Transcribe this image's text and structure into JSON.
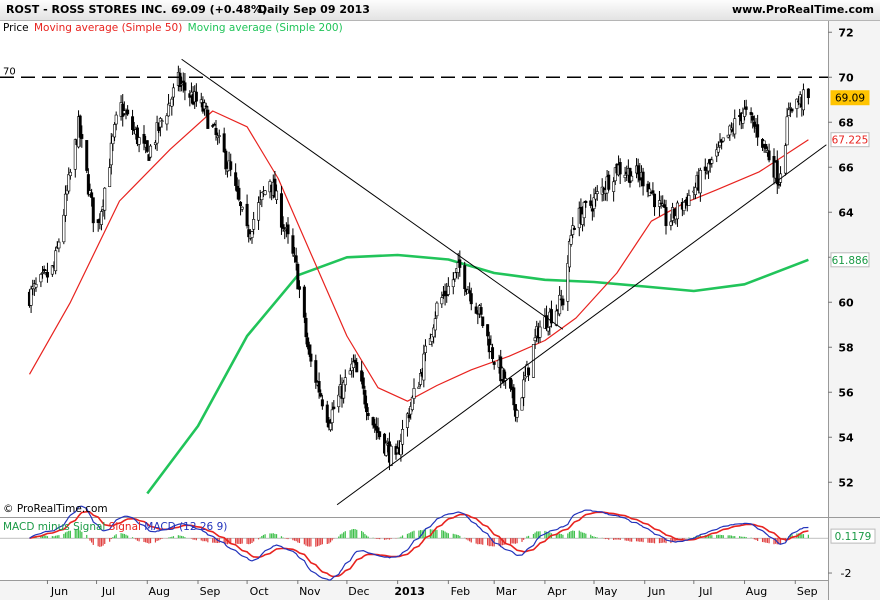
{
  "header": {
    "symbol_title": "ROST - ROSS STORES INC.",
    "last_change": "69.09 (+0.48%)",
    "period_date": "Daily  Sep 09 2013",
    "site": "www.ProRealTime.com"
  },
  "legend": {
    "price": "Price",
    "ma50": "Moving average (Simple 50)",
    "ma200": "Moving average (Simple 200)"
  },
  "macd_legend": {
    "hist": "MACD minus Signal",
    "signal": "Signal",
    "macd": "MACD (12 26 9)"
  },
  "copyright": "© ProRealTime.com",
  "colors": {
    "ma50": "#e8231f",
    "ma200": "#21c45a",
    "macd_line": "#2233bb",
    "signal_line": "#e8231f",
    "hist_pos": "#3dbf4a",
    "hist_neg": "#e04040",
    "badge_price": "#ffc400",
    "candle": "#000000"
  },
  "chart_data": [
    {
      "type": "candlestick",
      "title": "ROST - ROSS STORES INC.",
      "ylim": [
        50.5,
        72.5
      ],
      "yticks": [
        "52",
        "54",
        "56",
        "58",
        "60",
        "62",
        "64",
        "66",
        "68",
        "70",
        "72"
      ],
      "x_labels": [
        "Jun",
        "Jul",
        "Aug",
        "Sep",
        "Oct",
        "Nov",
        "Dec",
        "2013",
        "Feb",
        "Mar",
        "Apr",
        "May",
        "Jun",
        "Jul",
        "Aug",
        "Sep"
      ],
      "horizontal_line": {
        "label": "70",
        "value": 70
      },
      "last_price": "69.09",
      "ma50_last": "67.225",
      "ma200_last": "61.886",
      "close_path": [
        {
          "date": "2012-05-21",
          "close": 60.3
        },
        {
          "date": "2012-06-05",
          "close": 61.5
        },
        {
          "date": "2012-06-20",
          "close": 67.8
        },
        {
          "date": "2012-07-01",
          "close": 63.0
        },
        {
          "date": "2012-07-15",
          "close": 68.8
        },
        {
          "date": "2012-08-01",
          "close": 66.5
        },
        {
          "date": "2012-08-20",
          "close": 69.8
        },
        {
          "date": "2012-09-05",
          "close": 68.5
        },
        {
          "date": "2012-09-20",
          "close": 66.0
        },
        {
          "date": "2012-10-01",
          "close": 63.0
        },
        {
          "date": "2012-10-15",
          "close": 65.5
        },
        {
          "date": "2012-10-31",
          "close": 61.5
        },
        {
          "date": "2012-11-08",
          "close": 57.5
        },
        {
          "date": "2012-11-20",
          "close": 54.8
        },
        {
          "date": "2012-12-05",
          "close": 57.2
        },
        {
          "date": "2012-12-18",
          "close": 54.5
        },
        {
          "date": "2012-12-31",
          "close": 52.8
        },
        {
          "date": "2013-01-03",
          "close": 54.0
        },
        {
          "date": "2013-01-15",
          "close": 56.8
        },
        {
          "date": "2013-01-25",
          "close": 59.8
        },
        {
          "date": "2013-02-08",
          "close": 61.5
        },
        {
          "date": "2013-02-20",
          "close": 59.5
        },
        {
          "date": "2013-03-01",
          "close": 57.5
        },
        {
          "date": "2013-03-15",
          "close": 55.2
        },
        {
          "date": "2013-03-28",
          "close": 58.8
        },
        {
          "date": "2013-04-12",
          "close": 60.1
        },
        {
          "date": "2013-04-18",
          "close": 63.5
        },
        {
          "date": "2013-05-01",
          "close": 64.5
        },
        {
          "date": "2013-05-15",
          "close": 66.0
        },
        {
          "date": "2013-06-01",
          "close": 65.5
        },
        {
          "date": "2013-06-15",
          "close": 63.5
        },
        {
          "date": "2013-07-01",
          "close": 65.0
        },
        {
          "date": "2013-07-15",
          "close": 66.5
        },
        {
          "date": "2013-07-31",
          "close": 68.5
        },
        {
          "date": "2013-08-10",
          "close": 67.5
        },
        {
          "date": "2013-08-22",
          "close": 65.5
        },
        {
          "date": "2013-08-29",
          "close": 68.8
        },
        {
          "date": "2013-09-09",
          "close": 69.09
        }
      ],
      "ma50_path": [
        {
          "date": "2012-05-21",
          "ma": 56.8
        },
        {
          "date": "2012-06-15",
          "ma": 60.0
        },
        {
          "date": "2012-07-15",
          "ma": 64.5
        },
        {
          "date": "2012-08-15",
          "ma": 66.8
        },
        {
          "date": "2012-09-10",
          "ma": 68.5
        },
        {
          "date": "2012-10-01",
          "ma": 67.8
        },
        {
          "date": "2012-10-20",
          "ma": 65.5
        },
        {
          "date": "2012-11-10",
          "ma": 62.0
        },
        {
          "date": "2012-12-01",
          "ma": 58.5
        },
        {
          "date": "2012-12-20",
          "ma": 56.2
        },
        {
          "date": "2013-01-07",
          "ma": 55.6
        },
        {
          "date": "2013-01-25",
          "ma": 56.3
        },
        {
          "date": "2013-02-15",
          "ma": 57.0
        },
        {
          "date": "2013-03-10",
          "ma": 57.6
        },
        {
          "date": "2013-04-01",
          "ma": 58.3
        },
        {
          "date": "2013-04-20",
          "ma": 59.3
        },
        {
          "date": "2013-05-15",
          "ma": 61.3
        },
        {
          "date": "2013-06-05",
          "ma": 63.6
        },
        {
          "date": "2013-06-25",
          "ma": 64.4
        },
        {
          "date": "2013-07-15",
          "ma": 65.0
        },
        {
          "date": "2013-08-10",
          "ma": 65.8
        },
        {
          "date": "2013-09-09",
          "ma": 67.225
        }
      ],
      "ma200_path": [
        {
          "date": "2012-08-01",
          "ma": 51.5
        },
        {
          "date": "2012-09-01",
          "ma": 54.5
        },
        {
          "date": "2012-10-01",
          "ma": 58.5
        },
        {
          "date": "2012-11-01",
          "ma": 61.2
        },
        {
          "date": "2012-12-01",
          "ma": 62.0
        },
        {
          "date": "2013-01-01",
          "ma": 62.1
        },
        {
          "date": "2013-02-01",
          "ma": 61.9
        },
        {
          "date": "2013-03-01",
          "ma": 61.3
        },
        {
          "date": "2013-04-01",
          "ma": 61.0
        },
        {
          "date": "2013-05-01",
          "ma": 60.9
        },
        {
          "date": "2013-06-01",
          "ma": 60.7
        },
        {
          "date": "2013-07-01",
          "ma": 60.5
        },
        {
          "date": "2013-08-01",
          "ma": 60.8
        },
        {
          "date": "2013-09-09",
          "ma": 61.886
        }
      ],
      "trendlines": [
        {
          "from": {
            "date": "2012-08-22",
            "price": 70.8
          },
          "to": {
            "date": "2013-04-12",
            "price": 58.8
          }
        },
        {
          "from": {
            "date": "2012-11-25",
            "price": 51.0
          },
          "to": {
            "date": "2013-09-20",
            "price": 67.0
          }
        }
      ]
    },
    {
      "type": "macd",
      "title": "MACD (12 26 9)",
      "ylim": [
        -2.4,
        1.1
      ],
      "yticks": [
        "-2"
      ],
      "last_value": "0.1179"
    }
  ]
}
